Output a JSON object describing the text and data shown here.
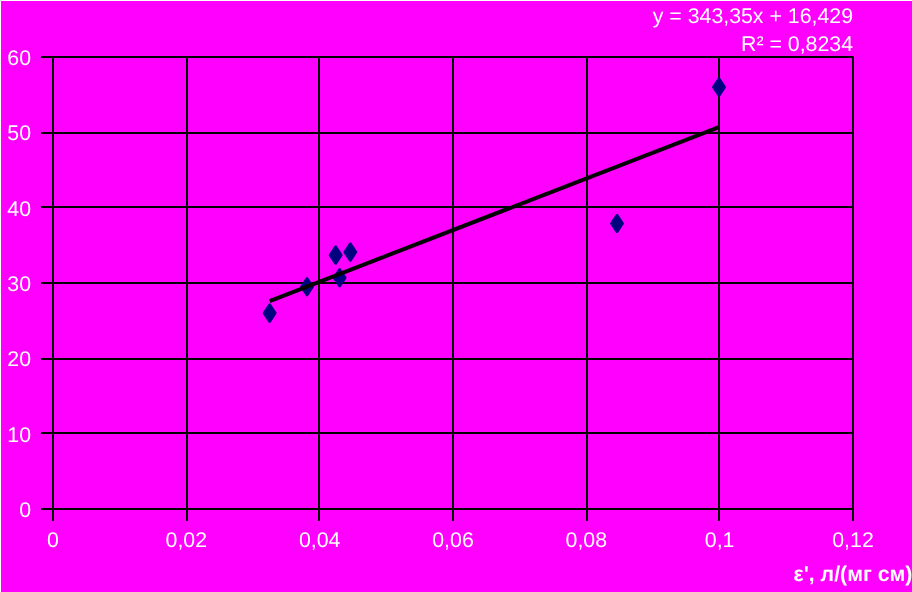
{
  "chart_data": {
    "type": "scatter",
    "xlabel": "ε', л/(мг см)",
    "annotations": [
      "y = 343,35x + 16,429",
      "R² = 0,8234"
    ],
    "series": [
      {
        "color": "#000080",
        "marker": "diamond",
        "x": [
          0.0325,
          0.0381,
          0.0424,
          0.0446,
          0.043,
          0.0846,
          0.0999
        ],
        "values": [
          26.0,
          29.5,
          33.7,
          34.1,
          30.7,
          37.9,
          56.0
        ]
      },
      {
        "type": "line",
        "color": "#000000",
        "marker": "none",
        "x": [
          0.0325,
          0.0999
        ],
        "values": [
          27.6,
          50.7
        ]
      }
    ],
    "xlim": [
      0,
      0.12
    ],
    "ylim": [
      0,
      60
    ],
    "xticks": [
      0,
      {
        "value": 0.02,
        "label": "0,02"
      },
      {
        "value": 0.04,
        "label": "0,04"
      },
      {
        "value": 0.06,
        "label": "0,06"
      },
      {
        "value": 0.08,
        "label": "0,08"
      },
      {
        "value": 0.1,
        "label": "0,1"
      },
      {
        "value": 0.12,
        "label": "0,12"
      }
    ],
    "yticks": [
      0,
      10,
      20,
      30,
      40,
      50,
      60
    ],
    "grid": true
  }
}
